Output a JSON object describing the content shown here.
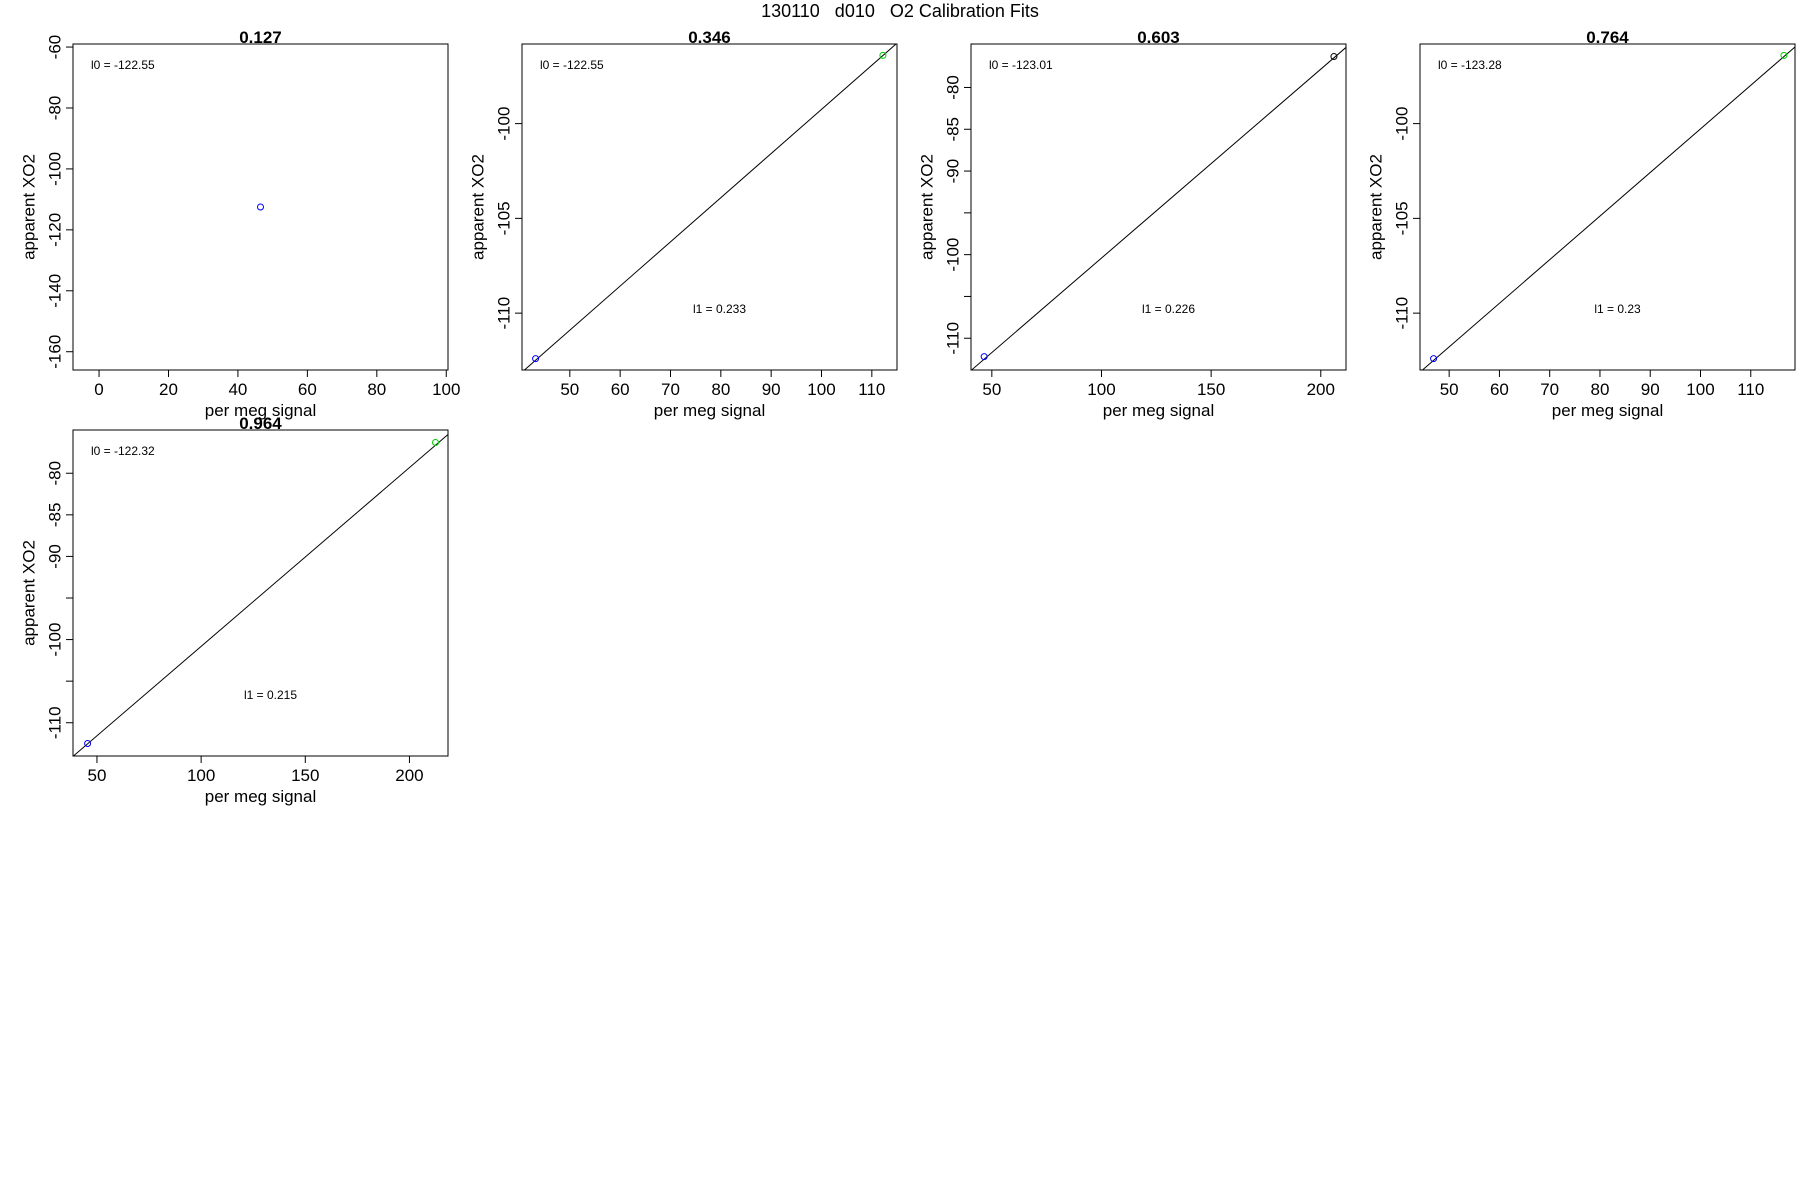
{
  "page": {
    "title": "130110   d010   O2 Calibration Fits"
  },
  "colors": {
    "frame": "#000000",
    "fit_line": "#000000",
    "blue": "#0000ff",
    "green": "#00cc00",
    "black": "#000000"
  },
  "chart_data": [
    {
      "type": "scatter",
      "title": "0.127",
      "xlabel": "per meg signal",
      "ylabel": "apparent XO2",
      "xlim": [
        -7.5,
        100.5
      ],
      "ylim": [
        -166,
        -59
      ],
      "x_ticks": [
        0,
        20,
        40,
        60,
        80,
        100
      ],
      "y_ticks": [
        -60,
        -80,
        -100,
        -120,
        -140,
        -160
      ],
      "y_minor_ticks": [],
      "points": [
        {
          "x": 46.5,
          "y": -112.5,
          "color": "blue"
        }
      ],
      "fit_line": null,
      "l0_label": "l0 =  -122.55",
      "l1_label": ""
    },
    {
      "type": "scatter",
      "title": "0.346",
      "xlabel": "per meg signal",
      "ylabel": "apparent XO2",
      "xlim": [
        40.5,
        115.0
      ],
      "ylim": [
        -113.0,
        -95.8
      ],
      "x_ticks": [
        50,
        60,
        70,
        80,
        90,
        100,
        110
      ],
      "y_ticks": [
        -100,
        -105,
        -110
      ],
      "y_minor_ticks": [],
      "points": [
        {
          "x": 43.2,
          "y": -112.4,
          "color": "blue"
        },
        {
          "x": 112.2,
          "y": -96.4,
          "color": "green"
        }
      ],
      "fit_line": {
        "intercept": -122.55,
        "slope": 0.233
      },
      "l0_label": "l0 =  -122.55",
      "l1_label": "l1 =  0.233"
    },
    {
      "type": "scatter",
      "title": "0.603",
      "xlabel": "per meg signal",
      "ylabel": "apparent XO2",
      "xlim": [
        40.5,
        211.5
      ],
      "ylim": [
        -113.8,
        -74.8
      ],
      "x_ticks": [
        50,
        100,
        150,
        200
      ],
      "y_ticks": [
        -80,
        -85,
        -90,
        -100,
        -110
      ],
      "y_minor_ticks": [
        -95,
        -105
      ],
      "points": [
        {
          "x": 46.5,
          "y": -112.2,
          "color": "blue"
        },
        {
          "x": 206.0,
          "y": -76.3,
          "color": "black"
        }
      ],
      "fit_line": {
        "intercept": -123.01,
        "slope": 0.226
      },
      "l0_label": "l0 =  -123.01",
      "l1_label": "l1 =  0.226"
    },
    {
      "type": "scatter",
      "title": "0.764",
      "xlabel": "per meg signal",
      "ylabel": "apparent XO2",
      "xlim": [
        44.2,
        118.8
      ],
      "ylim": [
        -113.0,
        -95.8
      ],
      "x_ticks": [
        50,
        60,
        70,
        80,
        90,
        100,
        110
      ],
      "y_ticks": [
        -100,
        -105,
        -110
      ],
      "y_minor_ticks": [],
      "points": [
        {
          "x": 46.9,
          "y": -112.4,
          "color": "blue"
        },
        {
          "x": 116.6,
          "y": -96.4,
          "color": "green"
        }
      ],
      "fit_line": {
        "intercept": -123.28,
        "slope": 0.23
      },
      "l0_label": "l0 =  -123.28",
      "l1_label": "l1 =  0.23"
    },
    {
      "type": "scatter",
      "title": "0.964",
      "xlabel": "per meg signal",
      "ylabel": "apparent XO2",
      "xlim": [
        38.5,
        218.5
      ],
      "ylim": [
        -114.0,
        -74.8
      ],
      "x_ticks": [
        50,
        100,
        150,
        200
      ],
      "y_ticks": [
        -80,
        -85,
        -90,
        -100,
        -110
      ],
      "y_minor_ticks": [
        -95,
        -105
      ],
      "points": [
        {
          "x": 45.5,
          "y": -112.5,
          "color": "blue"
        },
        {
          "x": 212.5,
          "y": -76.3,
          "color": "green"
        }
      ],
      "fit_line": {
        "intercept": -122.32,
        "slope": 0.215
      },
      "l0_label": "l0 =  -122.32",
      "l1_label": "l1 =  0.215"
    }
  ]
}
